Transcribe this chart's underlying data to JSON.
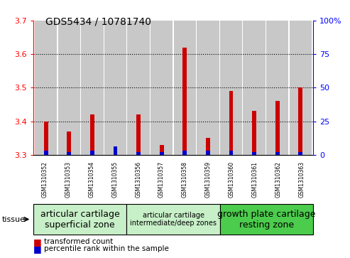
{
  "title": "GDS5434 / 10781740",
  "samples": [
    "GSM1310352",
    "GSM1310353",
    "GSM1310354",
    "GSM1310355",
    "GSM1310356",
    "GSM1310357",
    "GSM1310358",
    "GSM1310359",
    "GSM1310360",
    "GSM1310361",
    "GSM1310362",
    "GSM1310363"
  ],
  "red_values": [
    3.4,
    3.37,
    3.42,
    3.31,
    3.42,
    3.33,
    3.62,
    3.35,
    3.49,
    3.43,
    3.46,
    3.5
  ],
  "blue_percentiles": [
    3,
    2,
    3,
    6,
    2,
    2,
    3,
    3,
    3,
    2,
    2,
    2
  ],
  "ylim_left": [
    3.3,
    3.7
  ],
  "ylim_right": [
    0,
    100
  ],
  "yticks_left": [
    3.3,
    3.4,
    3.5,
    3.6,
    3.7
  ],
  "yticks_right": [
    0,
    25,
    50,
    75,
    100
  ],
  "groups": [
    {
      "label": "articular cartilage\nsuperficial zone",
      "start": 0,
      "end": 3,
      "color": "#c8f0c8",
      "fontsize_large": 9,
      "fontsize_small": 9
    },
    {
      "label": "articular cartilage\nintermediate/deep zones",
      "start": 4,
      "end": 7,
      "color": "#c8f0c8",
      "fontsize_large": 7,
      "fontsize_small": 7
    },
    {
      "label": "growth plate cartilage\nresting zone",
      "start": 8,
      "end": 11,
      "color": "#4ccc4c",
      "fontsize_large": 9,
      "fontsize_small": 9
    }
  ],
  "tissue_label": "tissue",
  "legend_red": "transformed count",
  "legend_blue": "percentile rank within the sample",
  "red_color": "#CC0000",
  "blue_color": "#0000CC",
  "bg_color": "#C8C8C8",
  "base_value": 3.3
}
